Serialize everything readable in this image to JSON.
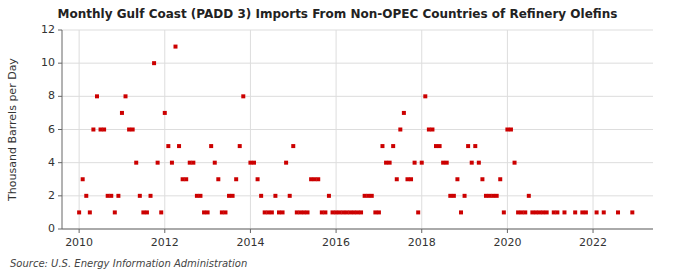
{
  "chart_data": {
    "type": "scatter",
    "title": "Monthly Gulf Coast (PADD 3) Imports From Non-OPEC Countries of Refinery Olefins",
    "ylabel": "Thousand Barrels per Day",
    "annotations": [
      "Source: U.S. Energy Information Administration"
    ],
    "color": "#cc0000",
    "marker": "square",
    "grid": true,
    "xlim": [
      2009.6,
      2023.4
    ],
    "ylim": [
      0,
      12
    ],
    "xticks": [
      2010,
      2012,
      2014,
      2016,
      2018,
      2020,
      2022
    ],
    "yticks": [
      0,
      2,
      4,
      6,
      8,
      10,
      12
    ],
    "x": [
      2010.0,
      2010.083,
      2010.167,
      2010.25,
      2010.333,
      2010.417,
      2010.5,
      2010.583,
      2010.667,
      2010.75,
      2010.833,
      2010.917,
      2011.0,
      2011.083,
      2011.167,
      2011.25,
      2011.333,
      2011.417,
      2011.5,
      2011.583,
      2011.667,
      2011.75,
      2011.833,
      2011.917,
      2012.0,
      2012.083,
      2012.167,
      2012.25,
      2012.333,
      2012.417,
      2012.5,
      2012.583,
      2012.667,
      2012.75,
      2012.833,
      2012.917,
      2013.0,
      2013.083,
      2013.167,
      2013.25,
      2013.333,
      2013.417,
      2013.5,
      2013.583,
      2013.667,
      2013.75,
      2013.833,
      2014.0,
      2014.083,
      2014.167,
      2014.25,
      2014.333,
      2014.417,
      2014.5,
      2014.583,
      2014.667,
      2014.75,
      2014.833,
      2014.917,
      2015.0,
      2015.083,
      2015.167,
      2015.25,
      2015.333,
      2015.417,
      2015.5,
      2015.583,
      2015.667,
      2015.75,
      2015.833,
      2015.917,
      2016.0,
      2016.083,
      2016.167,
      2016.25,
      2016.333,
      2016.417,
      2016.5,
      2016.583,
      2016.667,
      2016.75,
      2016.833,
      2016.917,
      2017.0,
      2017.083,
      2017.167,
      2017.25,
      2017.333,
      2017.417,
      2017.5,
      2017.583,
      2017.667,
      2017.75,
      2017.833,
      2017.917,
      2018.0,
      2018.083,
      2018.167,
      2018.25,
      2018.333,
      2018.417,
      2018.5,
      2018.583,
      2018.667,
      2018.75,
      2018.833,
      2018.917,
      2019.0,
      2019.083,
      2019.167,
      2019.25,
      2019.333,
      2019.417,
      2019.5,
      2019.583,
      2019.667,
      2019.75,
      2019.833,
      2019.917,
      2020.0,
      2020.083,
      2020.167,
      2020.25,
      2020.333,
      2020.417,
      2020.5,
      2020.583,
      2020.667,
      2020.75,
      2020.833,
      2020.917,
      2021.083,
      2021.167,
      2021.333,
      2021.583,
      2021.75,
      2021.833,
      2022.083,
      2022.25,
      2022.583,
      2022.917
    ],
    "values": [
      1,
      3,
      2,
      1,
      6,
      8,
      6,
      6,
      2,
      2,
      1,
      2,
      7,
      8,
      6,
      6,
      4,
      2,
      1,
      1,
      2,
      10,
      4,
      1,
      7,
      5,
      4,
      11,
      5,
      3,
      3,
      4,
      4,
      2,
      2,
      1,
      1,
      5,
      4,
      3,
      1,
      1,
      2,
      2,
      3,
      5,
      8,
      4,
      4,
      3,
      2,
      1,
      1,
      1,
      2,
      1,
      1,
      4,
      2,
      5,
      1,
      1,
      1,
      1,
      3,
      3,
      3,
      1,
      1,
      2,
      1,
      1,
      1,
      1,
      1,
      1,
      1,
      1,
      1,
      2,
      2,
      2,
      1,
      1,
      5,
      4,
      4,
      5,
      3,
      6,
      7,
      3,
      3,
      4,
      1,
      4,
      8,
      6,
      6,
      5,
      5,
      4,
      4,
      2,
      2,
      3,
      1,
      2,
      5,
      4,
      5,
      4,
      3,
      2,
      2,
      2,
      2,
      3,
      1,
      6,
      6,
      4,
      1,
      1,
      1,
      2,
      1,
      1,
      1,
      1,
      1,
      1,
      1,
      1,
      1,
      1,
      1,
      1,
      1,
      1,
      1
    ]
  }
}
